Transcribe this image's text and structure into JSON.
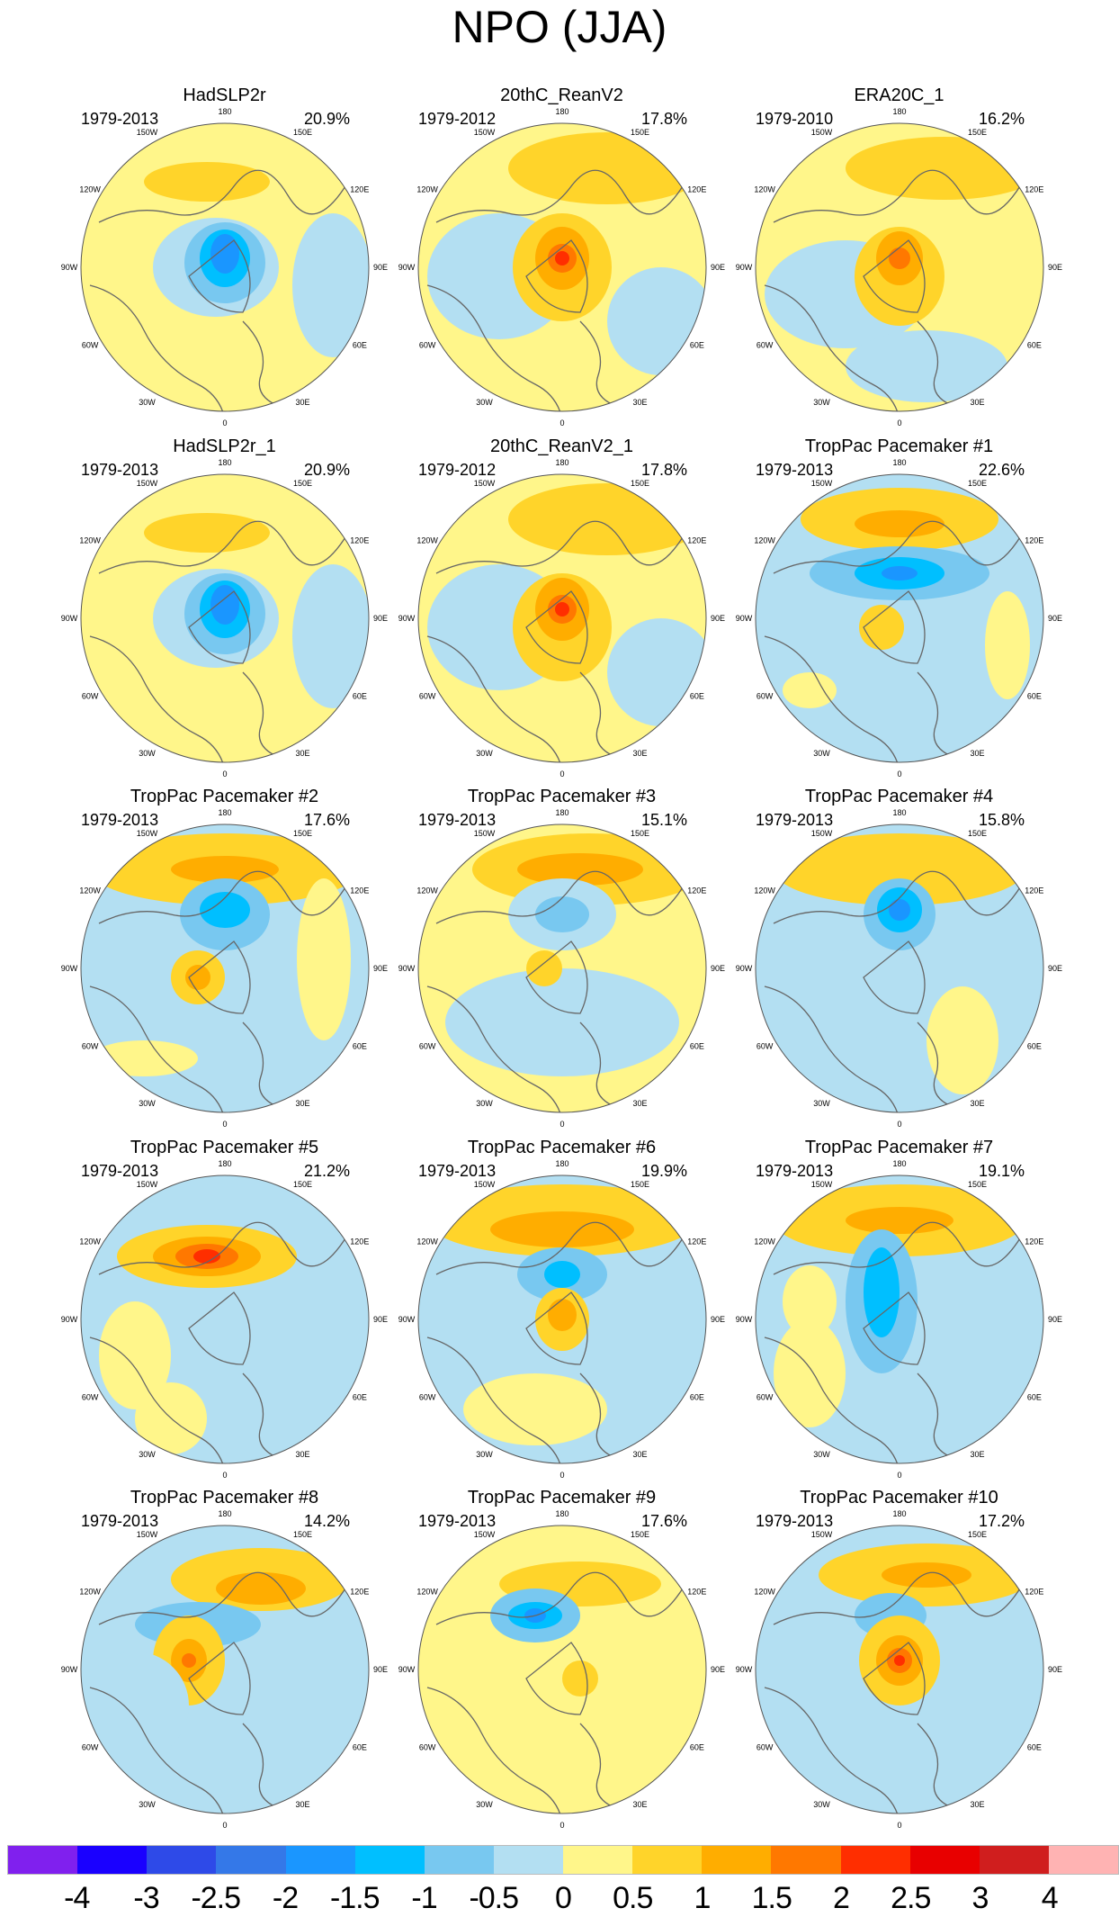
{
  "title": "NPO (JJA)",
  "lon_labels": [
    "180",
    "150E",
    "120E",
    "90E",
    "60E",
    "30E",
    "0",
    "30W",
    "60W",
    "90W",
    "120W",
    "150W"
  ],
  "panels": [
    {
      "title": "HadSLP2r",
      "period": "1979-2013",
      "percent": "20.9%"
    },
    {
      "title": "20thC_ReanV2",
      "period": "1979-2012",
      "percent": "17.8%"
    },
    {
      "title": "ERA20C_1",
      "period": "1979-2010",
      "percent": "16.2%"
    },
    {
      "title": "HadSLP2r_1",
      "period": "1979-2013",
      "percent": "20.9%"
    },
    {
      "title": "20thC_ReanV2_1",
      "period": "1979-2012",
      "percent": "17.8%"
    },
    {
      "title": "TropPac Pacemaker #1",
      "period": "1979-2013",
      "percent": "22.6%"
    },
    {
      "title": "TropPac Pacemaker #2",
      "period": "1979-2013",
      "percent": "17.6%"
    },
    {
      "title": "TropPac Pacemaker #3",
      "period": "1979-2013",
      "percent": "15.1%"
    },
    {
      "title": "TropPac Pacemaker #4",
      "period": "1979-2013",
      "percent": "15.8%"
    },
    {
      "title": "TropPac Pacemaker #5",
      "period": "1979-2013",
      "percent": "21.2%"
    },
    {
      "title": "TropPac Pacemaker #6",
      "period": "1979-2013",
      "percent": "19.9%"
    },
    {
      "title": "TropPac Pacemaker #7",
      "period": "1979-2013",
      "percent": "19.1%"
    },
    {
      "title": "TropPac Pacemaker #8",
      "period": "1979-2013",
      "percent": "14.2%"
    },
    {
      "title": "TropPac Pacemaker #9",
      "period": "1979-2013",
      "percent": "17.6%"
    },
    {
      "title": "TropPac Pacemaker #10",
      "period": "1979-2013",
      "percent": "17.2%"
    }
  ],
  "colorbar": {
    "labels": [
      "-4",
      "-3",
      "-2.5",
      "-2",
      "-1.5",
      "-1",
      "-0.5",
      "0",
      "0.5",
      "1",
      "1.5",
      "2",
      "2.5",
      "3",
      "4"
    ],
    "colors": [
      "#8020ee",
      "#1a00ff",
      "#2e4ae8",
      "#3478e8",
      "#1a96ff",
      "#00bfff",
      "#78c8f0",
      "#b3dff2",
      "#fff68a",
      "#ffd42a",
      "#ffad00",
      "#ff7800",
      "#ff2e00",
      "#e80000",
      "#d01e1e",
      "#ffb3b3"
    ]
  }
}
